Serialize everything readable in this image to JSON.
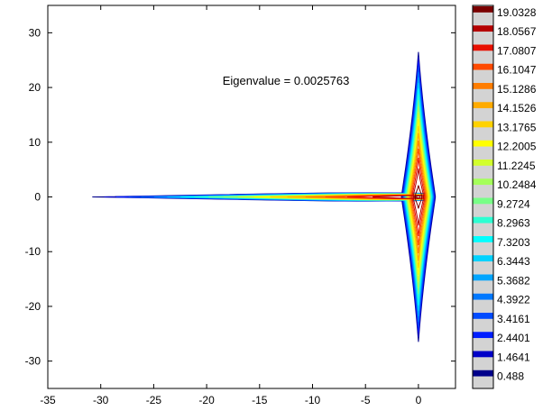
{
  "chart_data": {
    "type": "contour",
    "title": "",
    "xlabel": "",
    "ylabel": "",
    "xlim": [
      -35,
      3.5
    ],
    "ylim": [
      -35,
      35
    ],
    "xticks": [
      -35,
      -30,
      -25,
      -20,
      -15,
      -10,
      -5,
      0
    ],
    "yticks": [
      -30,
      -20,
      -10,
      0,
      10,
      20,
      30
    ],
    "grid": false,
    "annotation": "Eigenvalue = 0.0025763",
    "annotation_pos": [
      -18.5,
      20.5
    ],
    "contour_levels": [
      0.488,
      1.4641,
      2.4401,
      3.4161,
      4.3922,
      5.3682,
      6.3443,
      7.3203,
      8.2963,
      9.2724,
      10.2484,
      11.2245,
      12.2005,
      13.1765,
      14.1526,
      15.1286,
      16.1047,
      17.0807,
      18.0567,
      19.0328
    ],
    "colorbar": {
      "placement": "right",
      "labels": [
        "19.0328",
        "18.0567",
        "17.0807",
        "16.1047",
        "15.1286",
        "14.1526",
        "13.1765",
        "12.2005",
        "11.2245",
        "10.2484",
        "9.2724",
        "8.2963",
        "7.3203",
        "6.3443",
        "5.3682",
        "4.3922",
        "3.4161",
        "2.4401",
        "1.4641",
        "0.488"
      ],
      "colors": [
        "#7a0000",
        "#b50000",
        "#e81000",
        "#ff4a00",
        "#ff7d00",
        "#ffab00",
        "#ffd200",
        "#ffff00",
        "#d2ff2d",
        "#a5ff5a",
        "#78ff87",
        "#2dffd2",
        "#00ffff",
        "#00d2ff",
        "#00a5ff",
        "#0078ff",
        "#004bff",
        "#001eff",
        "#0000c8",
        "#00008b"
      ]
    },
    "field": {
      "horizontal_arm": {
        "x_start": -30.8,
        "x_end": 0,
        "y_halfwidth_max": 1.1
      },
      "vertical_arm": {
        "x_center": 0,
        "y_extent": 26.5,
        "x_halfwidth_max": 1.6
      }
    }
  }
}
